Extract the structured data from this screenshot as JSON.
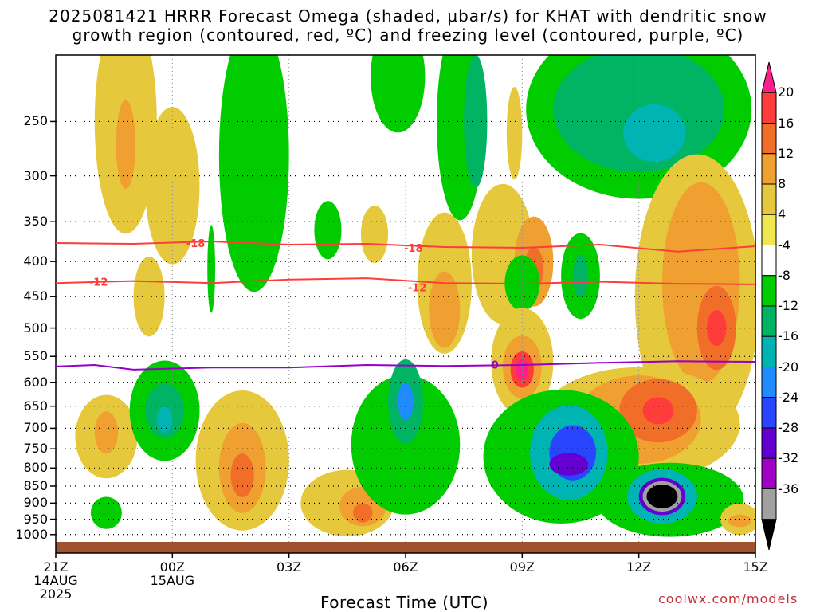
{
  "title_line1": "2025081421 HRRR Forecast Omega (shaded, μbar/s) for KHAT with dendritic snow",
  "title_line2": "growth region (contoured, red, ºC) and freezing level (contoured, purple, ºC)",
  "credit": "coolwx.com/models",
  "chart_data": {
    "type": "heatmap",
    "title": "2025081421 HRRR Forecast Omega (shaded, μbar/s) for KHAT with dendritic snow growth region (contoured, red, ºC) and freezing level (contoured, purple, ºC)",
    "xlabel": "Forecast Time (UTC)",
    "ylabel": "",
    "x_ticks": [
      {
        "hour": 0,
        "lines": [
          "21Z",
          "14AUG",
          "2025"
        ]
      },
      {
        "hour": 3,
        "lines": [
          "00Z",
          "15AUG"
        ]
      },
      {
        "hour": 6,
        "lines": [
          "03Z"
        ]
      },
      {
        "hour": 9,
        "lines": [
          "06Z"
        ]
      },
      {
        "hour": 12,
        "lines": [
          "09Z"
        ]
      },
      {
        "hour": 15,
        "lines": [
          "12Z"
        ]
      },
      {
        "hour": 18,
        "lines": [
          "15Z"
        ]
      }
    ],
    "xlim_hours": [
      0,
      18
    ],
    "y_axis": "pressure (mb), reversed, log-like",
    "y_ticks": [
      250,
      300,
      350,
      400,
      450,
      500,
      550,
      600,
      650,
      700,
      750,
      800,
      850,
      900,
      950,
      1000
    ],
    "ylim_mb": [
      200,
      1025
    ],
    "grid": true,
    "colorbar": {
      "labels": [
        "20",
        "16",
        "12",
        "8",
        "4",
        "-4",
        "-8",
        "-12",
        "-16",
        "-20",
        "-24",
        "-28",
        "-32",
        "-36"
      ],
      "colors": [
        "#ff1e8c",
        "#ff3c3c",
        "#f06e28",
        "#f0a030",
        "#e6c83c",
        "#f0e650",
        "#ffffff",
        "#00cc00",
        "#00b464",
        "#00b4b4",
        "#1e8cff",
        "#2846ff",
        "#6400d2",
        "#a000c8",
        "#a0a0a0",
        "#000000"
      ]
    },
    "contours": [
      {
        "label": "-18",
        "color": "#ff3c3c",
        "points": [
          [
            0,
            376
          ],
          [
            2,
            377
          ],
          [
            4,
            374
          ],
          [
            6,
            378
          ],
          [
            8,
            377
          ],
          [
            10,
            381
          ],
          [
            12,
            382
          ],
          [
            14,
            378
          ],
          [
            16,
            387
          ],
          [
            18,
            380
          ]
        ]
      },
      {
        "label": "-12",
        "color": "#ff3c3c",
        "points": [
          [
            0,
            430
          ],
          [
            2,
            427
          ],
          [
            4,
            430
          ],
          [
            6,
            425
          ],
          [
            8,
            423
          ],
          [
            10,
            430
          ],
          [
            12,
            431
          ],
          [
            14,
            428
          ],
          [
            16,
            431
          ],
          [
            18,
            432
          ]
        ]
      },
      {
        "label": "0",
        "color": "#9600c8",
        "points": [
          [
            0,
            569
          ],
          [
            1,
            566
          ],
          [
            2,
            575
          ],
          [
            4,
            571
          ],
          [
            6,
            571
          ],
          [
            8,
            566
          ],
          [
            10,
            568
          ],
          [
            12,
            566
          ],
          [
            14,
            562
          ],
          [
            16,
            559
          ],
          [
            18,
            560
          ]
        ]
      }
    ],
    "contour_labels": [
      {
        "text": "-18",
        "hour": 3.6,
        "mb": 376,
        "color": "#ff3c3c"
      },
      {
        "text": "-18",
        "hour": 9.2,
        "mb": 382,
        "color": "#ff3c3c"
      },
      {
        "text": "-12",
        "hour": 1.1,
        "mb": 428,
        "color": "#ff3c3c"
      },
      {
        "text": "-12",
        "hour": 9.3,
        "mb": 436,
        "color": "#ff3c3c"
      },
      {
        "text": "0",
        "hour": 11.3,
        "mb": 565,
        "color": "#9600c8"
      }
    ],
    "regions": [
      {
        "level": 4,
        "hour": 1.8,
        "mb": 250,
        "rx": 0.8,
        "rmb": 90
      },
      {
        "level": 8,
        "hour": 1.8,
        "mb": 270,
        "rx": 0.25,
        "rmb": 40
      },
      {
        "level": 4,
        "hour": 3.0,
        "mb": 310,
        "rx": 0.7,
        "rmb": 80
      },
      {
        "level": 4,
        "hour": 2.4,
        "mb": 450,
        "rx": 0.4,
        "rmb": 60
      },
      {
        "level": -8,
        "hour": 5.1,
        "mb": 280,
        "rx": 0.9,
        "rmb": 120
      },
      {
        "level": -8,
        "hour": 4.0,
        "mb": 410,
        "rx": 0.1,
        "rmb": 60
      },
      {
        "level": -8,
        "hour": 7.0,
        "mb": 360,
        "rx": 0.35,
        "rmb": 35
      },
      {
        "level": -8,
        "hour": 8.8,
        "mb": 215,
        "rx": 0.7,
        "rmb": 40
      },
      {
        "level": 4,
        "hour": 8.2,
        "mb": 365,
        "rx": 0.35,
        "rmb": 35
      },
      {
        "level": -8,
        "hour": 10.4,
        "mb": 250,
        "rx": 0.6,
        "rmb": 80
      },
      {
        "level": -12,
        "hour": 10.8,
        "mb": 250,
        "rx": 0.3,
        "rmb": 55
      },
      {
        "level": 4,
        "hour": 11.8,
        "mb": 260,
        "rx": 0.2,
        "rmb": 40
      },
      {
        "level": -8,
        "hour": 15.0,
        "mb": 240,
        "rx": 2.9,
        "rmb": 70
      },
      {
        "level": -12,
        "hour": 15.0,
        "mb": 240,
        "rx": 2.2,
        "rmb": 50
      },
      {
        "level": -16,
        "hour": 15.4,
        "mb": 260,
        "rx": 0.8,
        "rmb": 25
      },
      {
        "level": 4,
        "hour": 11.5,
        "mb": 390,
        "rx": 0.8,
        "rmb": 90
      },
      {
        "level": 8,
        "hour": 12.3,
        "mb": 400,
        "rx": 0.5,
        "rmb": 60
      },
      {
        "level": 12,
        "hour": 12.3,
        "mb": 410,
        "rx": 0.25,
        "rmb": 30
      },
      {
        "level": -8,
        "hour": 12.0,
        "mb": 430,
        "rx": 0.45,
        "rmb": 40
      },
      {
        "level": 4,
        "hour": 10.0,
        "mb": 430,
        "rx": 0.7,
        "rmb": 100
      },
      {
        "level": 8,
        "hour": 10.0,
        "mb": 470,
        "rx": 0.4,
        "rmb": 60
      },
      {
        "level": -8,
        "hour": 13.5,
        "mb": 420,
        "rx": 0.5,
        "rmb": 60
      },
      {
        "level": -12,
        "hour": 13.5,
        "mb": 420,
        "rx": 0.2,
        "rmb": 30
      },
      {
        "level": 4,
        "hour": 16.5,
        "mb": 450,
        "rx": 1.6,
        "rmb": 200
      },
      {
        "level": 8,
        "hour": 16.6,
        "mb": 430,
        "rx": 1.0,
        "rmb": 140
      },
      {
        "level": 12,
        "hour": 17.0,
        "mb": 500,
        "rx": 0.5,
        "rmb": 70
      },
      {
        "level": 16,
        "hour": 17.0,
        "mb": 500,
        "rx": 0.25,
        "rmb": 30
      },
      {
        "level": 4,
        "hour": 15.0,
        "mb": 690,
        "rx": 2.6,
        "rmb": 130
      },
      {
        "level": 8,
        "hour": 15.0,
        "mb": 680,
        "rx": 1.6,
        "rmb": 100
      },
      {
        "level": 12,
        "hour": 15.5,
        "mb": 660,
        "rx": 1.0,
        "rmb": 70
      },
      {
        "level": 16,
        "hour": 15.5,
        "mb": 660,
        "rx": 0.4,
        "rmb": 30
      },
      {
        "level": 4,
        "hour": 12.0,
        "mb": 560,
        "rx": 0.8,
        "rmb": 100
      },
      {
        "level": 8,
        "hour": 12.0,
        "mb": 570,
        "rx": 0.5,
        "rmb": 60
      },
      {
        "level": 16,
        "hour": 12.0,
        "mb": 575,
        "rx": 0.3,
        "rmb": 35
      },
      {
        "level": 20,
        "hour": 12.0,
        "mb": 575,
        "rx": 0.15,
        "rmb": 20
      },
      {
        "level": 4,
        "hour": 1.3,
        "mb": 720,
        "rx": 0.8,
        "rmb": 100
      },
      {
        "level": 8,
        "hour": 1.3,
        "mb": 710,
        "rx": 0.3,
        "rmb": 50
      },
      {
        "level": -8,
        "hour": 2.8,
        "mb": 660,
        "rx": 0.9,
        "rmb": 110
      },
      {
        "level": -12,
        "hour": 2.8,
        "mb": 660,
        "rx": 0.5,
        "rmb": 60
      },
      {
        "level": -16,
        "hour": 2.8,
        "mb": 680,
        "rx": 0.2,
        "rmb": 30
      },
      {
        "level": 4,
        "hour": 4.8,
        "mb": 780,
        "rx": 1.2,
        "rmb": 180
      },
      {
        "level": 8,
        "hour": 4.8,
        "mb": 800,
        "rx": 0.6,
        "rmb": 120
      },
      {
        "level": 12,
        "hour": 4.8,
        "mb": 820,
        "rx": 0.3,
        "rmb": 60
      },
      {
        "level": 4,
        "hour": 7.5,
        "mb": 900,
        "rx": 1.2,
        "rmb": 100
      },
      {
        "level": 8,
        "hour": 7.9,
        "mb": 910,
        "rx": 0.6,
        "rmb": 60
      },
      {
        "level": 12,
        "hour": 7.9,
        "mb": 930,
        "rx": 0.25,
        "rmb": 30
      },
      {
        "level": -8,
        "hour": 9.0,
        "mb": 740,
        "rx": 1.4,
        "rmb": 170
      },
      {
        "level": -12,
        "hour": 9.0,
        "mb": 640,
        "rx": 0.45,
        "rmb": 90
      },
      {
        "level": -20,
        "hour": 9.0,
        "mb": 640,
        "rx": 0.2,
        "rmb": 40
      },
      {
        "level": -8,
        "hour": 13.0,
        "mb": 770,
        "rx": 2.0,
        "rmb": 170
      },
      {
        "level": -16,
        "hour": 13.2,
        "mb": 760,
        "rx": 1.0,
        "rmb": 120
      },
      {
        "level": -24,
        "hour": 13.3,
        "mb": 760,
        "rx": 0.6,
        "rmb": 70
      },
      {
        "level": -28,
        "hour": 13.2,
        "mb": 790,
        "rx": 0.5,
        "rmb": 30
      },
      {
        "level": -8,
        "hour": 15.8,
        "mb": 890,
        "rx": 1.9,
        "rmb": 110
      },
      {
        "level": -16,
        "hour": 15.6,
        "mb": 880,
        "rx": 0.9,
        "rmb": 80
      },
      {
        "level": -28,
        "hour": 15.6,
        "mb": 880,
        "rx": 0.6,
        "rmb": 55
      },
      {
        "level": -32,
        "hour": 15.6,
        "mb": 880,
        "rx": 0.5,
        "rmb": 45
      },
      {
        "level": -36,
        "hour": 15.6,
        "mb": 880,
        "rx": 0.4,
        "rmb": 35
      },
      {
        "level": -8,
        "hour": 1.3,
        "mb": 930,
        "rx": 0.4,
        "rmb": 50
      },
      {
        "level": 4,
        "hour": 17.6,
        "mb": 950,
        "rx": 0.5,
        "rmb": 50
      },
      {
        "level": 8,
        "hour": 17.6,
        "mb": 955,
        "rx": 0.3,
        "rmb": 20
      }
    ]
  }
}
